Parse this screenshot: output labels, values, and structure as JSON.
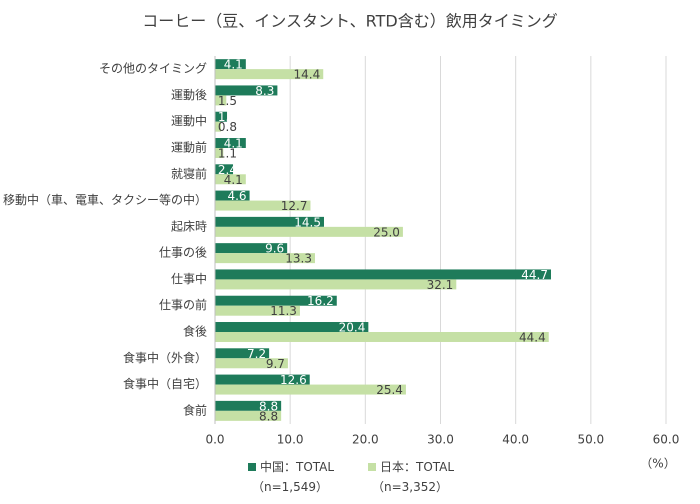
{
  "chart_data": {
    "type": "hbar",
    "title": "コーヒー（豆、インスタント、RTD含む）飲用タイミング",
    "categories": [
      "その他のタイミング",
      "運動後",
      "運動中",
      "運動前",
      "就寝前",
      "移動中（車、電車、タクシー等の中）",
      "起床時",
      "仕事の後",
      "仕事中",
      "仕事の前",
      "食後",
      "食事中（外食）",
      "食事中（自宅）",
      "食前"
    ],
    "series": [
      {
        "name": "中国：TOTAL（n=1,549）",
        "color": "#1e7b5a",
        "values": [
          4.1,
          8.3,
          1.6,
          4.1,
          2.4,
          4.6,
          14.5,
          9.6,
          44.7,
          16.2,
          20.4,
          7.2,
          12.6,
          8.8
        ],
        "value_labels": [
          "4.1",
          "8.3",
          "1.6",
          "4.1",
          "2.4",
          "4.6",
          "14.5",
          "9.6",
          "44.7",
          "16.2",
          "20.4",
          "7.2",
          "12.6",
          "8.8"
        ]
      },
      {
        "name": "日本：TOTAL（n=3,352）",
        "color": "#c5e0a5",
        "values": [
          14.4,
          1.5,
          0.8,
          1.1,
          4.1,
          12.7,
          25,
          13.3,
          32.1,
          11.3,
          44.4,
          9.7,
          25.4,
          8.8
        ],
        "value_labels": [
          "14.4",
          "1.5",
          "0.8",
          "1.1",
          "4.1",
          "12.7",
          "25.0",
          "13.3",
          "32.1",
          "11.3",
          "44.4",
          "9.7",
          "25.4",
          "8.8"
        ]
      }
    ],
    "xlim": [
      0,
      60
    ],
    "xticks": [
      {
        "value": 0,
        "label": "0.0"
      },
      {
        "value": 10,
        "label": "10.0"
      },
      {
        "value": 20,
        "label": "20.0"
      },
      {
        "value": 30,
        "label": "30.0"
      },
      {
        "value": 40,
        "label": "40.0"
      },
      {
        "value": 50,
        "label": "50.0"
      },
      {
        "value": 60,
        "label": "60.0"
      }
    ],
    "xlabel": "（%）",
    "grid": true
  }
}
